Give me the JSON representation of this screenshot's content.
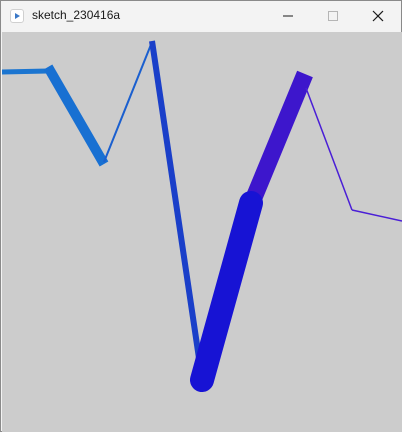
{
  "window": {
    "title": "sketch_230416a",
    "controls": {
      "minimize_icon": "minimize-icon",
      "maximize_icon": "maximize-icon",
      "close_icon": "close-icon"
    }
  },
  "canvas": {
    "background": "#cccccc",
    "colors": [
      "#1b75d0",
      "#1a5fcf",
      "#1a3fc9",
      "#1713d4",
      "#3d16cc",
      "#4a1ed6"
    ]
  }
}
